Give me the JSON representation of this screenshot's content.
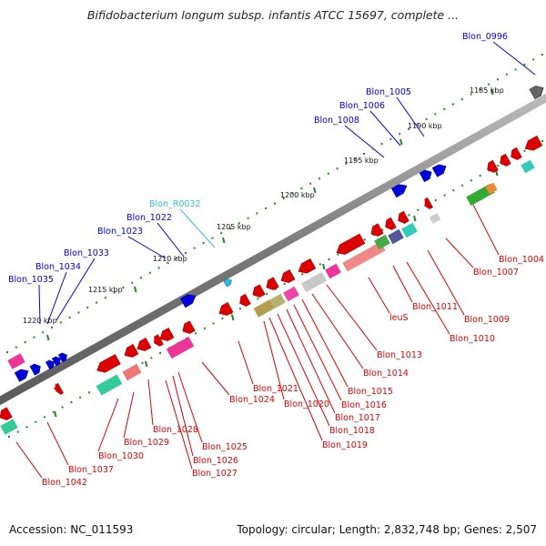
{
  "title": "Bifidobacterium longum subsp. infantis ATCC 15697, complete ...",
  "footer": {
    "accession": "Accession: NC_011593",
    "topology": "Topology: circular; Length: 2,832,748 bp; Genes: 2,507"
  },
  "kbp_ticks": [
    "1185 kbp",
    "1190 kbp",
    "1195 kbp",
    "1200 kbp",
    "1205 kbp",
    "1210 kbp",
    "1215 kbp",
    "1220 kbp"
  ],
  "colors": {
    "forward_gene": "#0000dd",
    "reverse_gene": "#dd0000",
    "rna_gene": "#33bbdd",
    "backbone": "#808080",
    "tick": "#228822"
  },
  "forward_labels": [
    "Blon_0996",
    "Blon_1005",
    "Blon_1006",
    "Blon_1008",
    "Blon_R0032",
    "Blon_1022",
    "Blon_1023",
    "Blon_1033",
    "Blon_1034",
    "Blon_1035"
  ],
  "reverse_labels": [
    "Blon_1004",
    "Blon_1007",
    "Blon_1009",
    "Blon_1010",
    "Blon_1011",
    "leuS",
    "Blon_1013",
    "Blon_1014",
    "Blon_1015",
    "Blon_1016",
    "Blon_1017",
    "Blon_1018",
    "Blon_1019",
    "Blon_1020",
    "Blon_1021",
    "Blon_1024",
    "Blon_1025",
    "Blon_1026",
    "Blon_1027",
    "Blon_1028",
    "Blon_1029",
    "Blon_1030",
    "Blon_1037",
    "Blon_1042"
  ]
}
